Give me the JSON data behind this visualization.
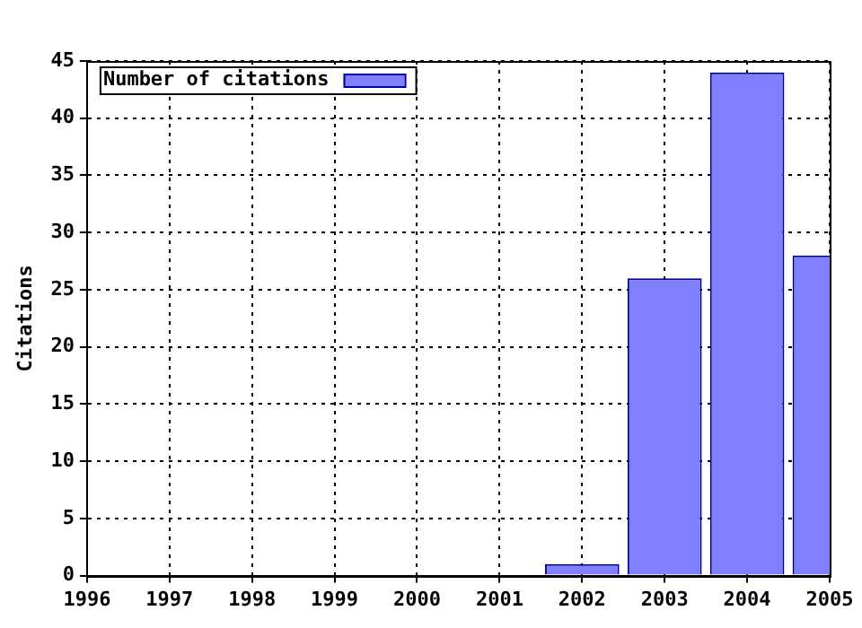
{
  "chart_data": {
    "type": "bar",
    "ylabel": "Citations",
    "x": [
      2002,
      2003,
      2004,
      2005
    ],
    "series": [
      {
        "name": "Number of citations",
        "color": "#8080ff",
        "values": [
          1,
          26,
          44,
          28
        ]
      }
    ],
    "xlim": [
      1996,
      2005
    ],
    "xticks": [
      1996,
      1997,
      1998,
      1999,
      2000,
      2001,
      2002,
      2003,
      2004,
      2005
    ],
    "ylim": [
      0,
      45
    ],
    "yticks": [
      0,
      5,
      10,
      15,
      20,
      25,
      30,
      35,
      40,
      45
    ],
    "grid": true,
    "legend": "top left"
  }
}
